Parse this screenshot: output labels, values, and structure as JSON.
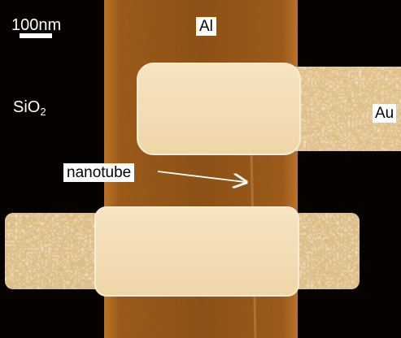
{
  "labels": {
    "scale": "100nm",
    "substrate": "SiO",
    "substrate_sub": "2",
    "top_metal": "Al",
    "electrode": "Au",
    "nanotube": "nanotube"
  },
  "colors": {
    "background": "#050200",
    "al_strip": "#9a5a16",
    "al_edge": "#b06a22",
    "au_lead": "#e6c78e",
    "contact_pad": "#f2dcb2",
    "nanotube_line": "#b27330"
  }
}
